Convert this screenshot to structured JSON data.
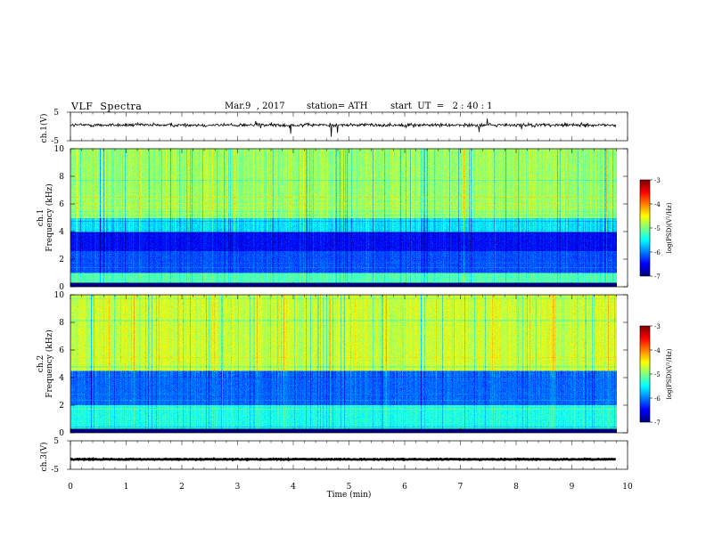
{
  "header": {
    "title": "VLF  Spectra",
    "date": "Mar.9  , 2017",
    "station": "station= ATH",
    "start_ut": "start  UT  =   2 : 40 : 1"
  },
  "chart_data": [
    {
      "type": "line",
      "panel": "ch1-waveform",
      "ylabel": "ch.1(V)",
      "ylim": [
        -5,
        5
      ],
      "yticks": [
        "5",
        "-5"
      ],
      "xlim": [
        0,
        10
      ],
      "series": [
        {
          "x_range": [
            0,
            9.8
          ],
          "baseline": 0.5,
          "noise": 0.6,
          "color": "#000000"
        }
      ]
    },
    {
      "type": "heatmap",
      "panel": "ch1-spectrogram",
      "ylabel_line1": "ch.1",
      "ylabel_line2": "Frequency  (kHz)",
      "ylim": [
        0,
        10
      ],
      "yticks": [
        "0",
        "2",
        "4",
        "6",
        "8",
        "10"
      ],
      "xlim": [
        0,
        9.8
      ],
      "bands_kHz": [
        {
          "from": 0,
          "to": 0.3,
          "level": -7.0
        },
        {
          "from": 0.3,
          "to": 1.0,
          "level": -5.2
        },
        {
          "from": 1.0,
          "to": 2.6,
          "level": -6.2
        },
        {
          "from": 2.6,
          "to": 4.0,
          "level": -6.5
        },
        {
          "from": 4.0,
          "to": 5.0,
          "level": -5.6
        },
        {
          "from": 5.0,
          "to": 10.0,
          "level": -4.9
        }
      ],
      "colorbar": {
        "label": "log(PSD)(V²/Hz)",
        "range": [
          -7,
          -3
        ],
        "ticks": [
          "-3",
          "-4",
          "-5",
          "-6",
          "-7"
        ]
      }
    },
    {
      "type": "heatmap",
      "panel": "ch2-spectrogram",
      "ylabel_line1": "ch.2",
      "ylabel_line2": "Frequency  (kHz)",
      "ylim": [
        0,
        10
      ],
      "yticks": [
        "0",
        "2",
        "4",
        "6",
        "8",
        "10"
      ],
      "xlim": [
        0,
        9.8
      ],
      "bands_kHz": [
        {
          "from": 0,
          "to": 0.3,
          "level": -7.0
        },
        {
          "from": 0.3,
          "to": 2.0,
          "level": -5.4
        },
        {
          "from": 2.0,
          "to": 4.5,
          "level": -6.1
        },
        {
          "from": 4.5,
          "to": 10.0,
          "level": -4.7
        }
      ],
      "colorbar": {
        "label": "log(PSD)(V²/Hz)",
        "range": [
          -7,
          -3
        ],
        "ticks": [
          "-3",
          "-4",
          "-5",
          "-6",
          "-7"
        ]
      }
    },
    {
      "type": "line",
      "panel": "ch3-waveform",
      "ylabel": "ch.3(V)",
      "ylim": [
        -5,
        5
      ],
      "yticks": [
        "5",
        "-5"
      ],
      "xlim": [
        0,
        10
      ],
      "xlabel": "Time  (min)",
      "xticks": [
        "0",
        "1",
        "2",
        "3",
        "4",
        "5",
        "6",
        "7",
        "8",
        "9",
        "10"
      ],
      "series": [
        {
          "x_range": [
            0,
            9.8
          ],
          "baseline": -1.5,
          "noise": 0.15,
          "color": "#000000"
        }
      ]
    }
  ]
}
